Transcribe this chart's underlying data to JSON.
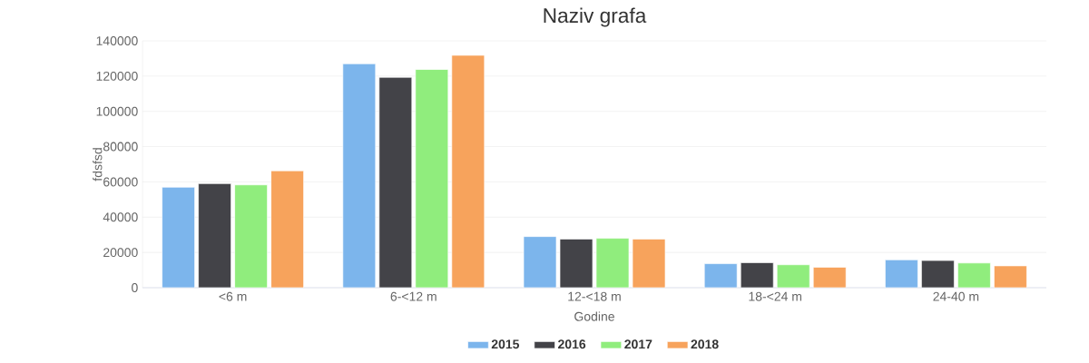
{
  "chart_data": {
    "type": "bar",
    "title": "Naziv grafa",
    "xlabel": "Godine",
    "ylabel": "fdsfsd",
    "categories": [
      "<6 m",
      "6-<12 m",
      "12-<18 m",
      "18-<24 m",
      "24-40 m"
    ],
    "series": [
      {
        "name": "2015",
        "color": "#7cb5ec",
        "values": [
          57000,
          127000,
          29000,
          13600,
          15800
        ]
      },
      {
        "name": "2016",
        "color": "#434348",
        "values": [
          59000,
          119300,
          27600,
          14200,
          15400
        ]
      },
      {
        "name": "2017",
        "color": "#90ed7d",
        "values": [
          58300,
          123800,
          28000,
          13000,
          14000
        ]
      },
      {
        "name": "2018",
        "color": "#f7a35c",
        "values": [
          66300,
          131800,
          27600,
          11600,
          12400
        ]
      }
    ],
    "ylim": [
      0,
      140000
    ],
    "yticks": [
      0,
      20000,
      40000,
      60000,
      80000,
      100000,
      120000,
      140000
    ],
    "grid": "y",
    "legend": "bottom"
  }
}
